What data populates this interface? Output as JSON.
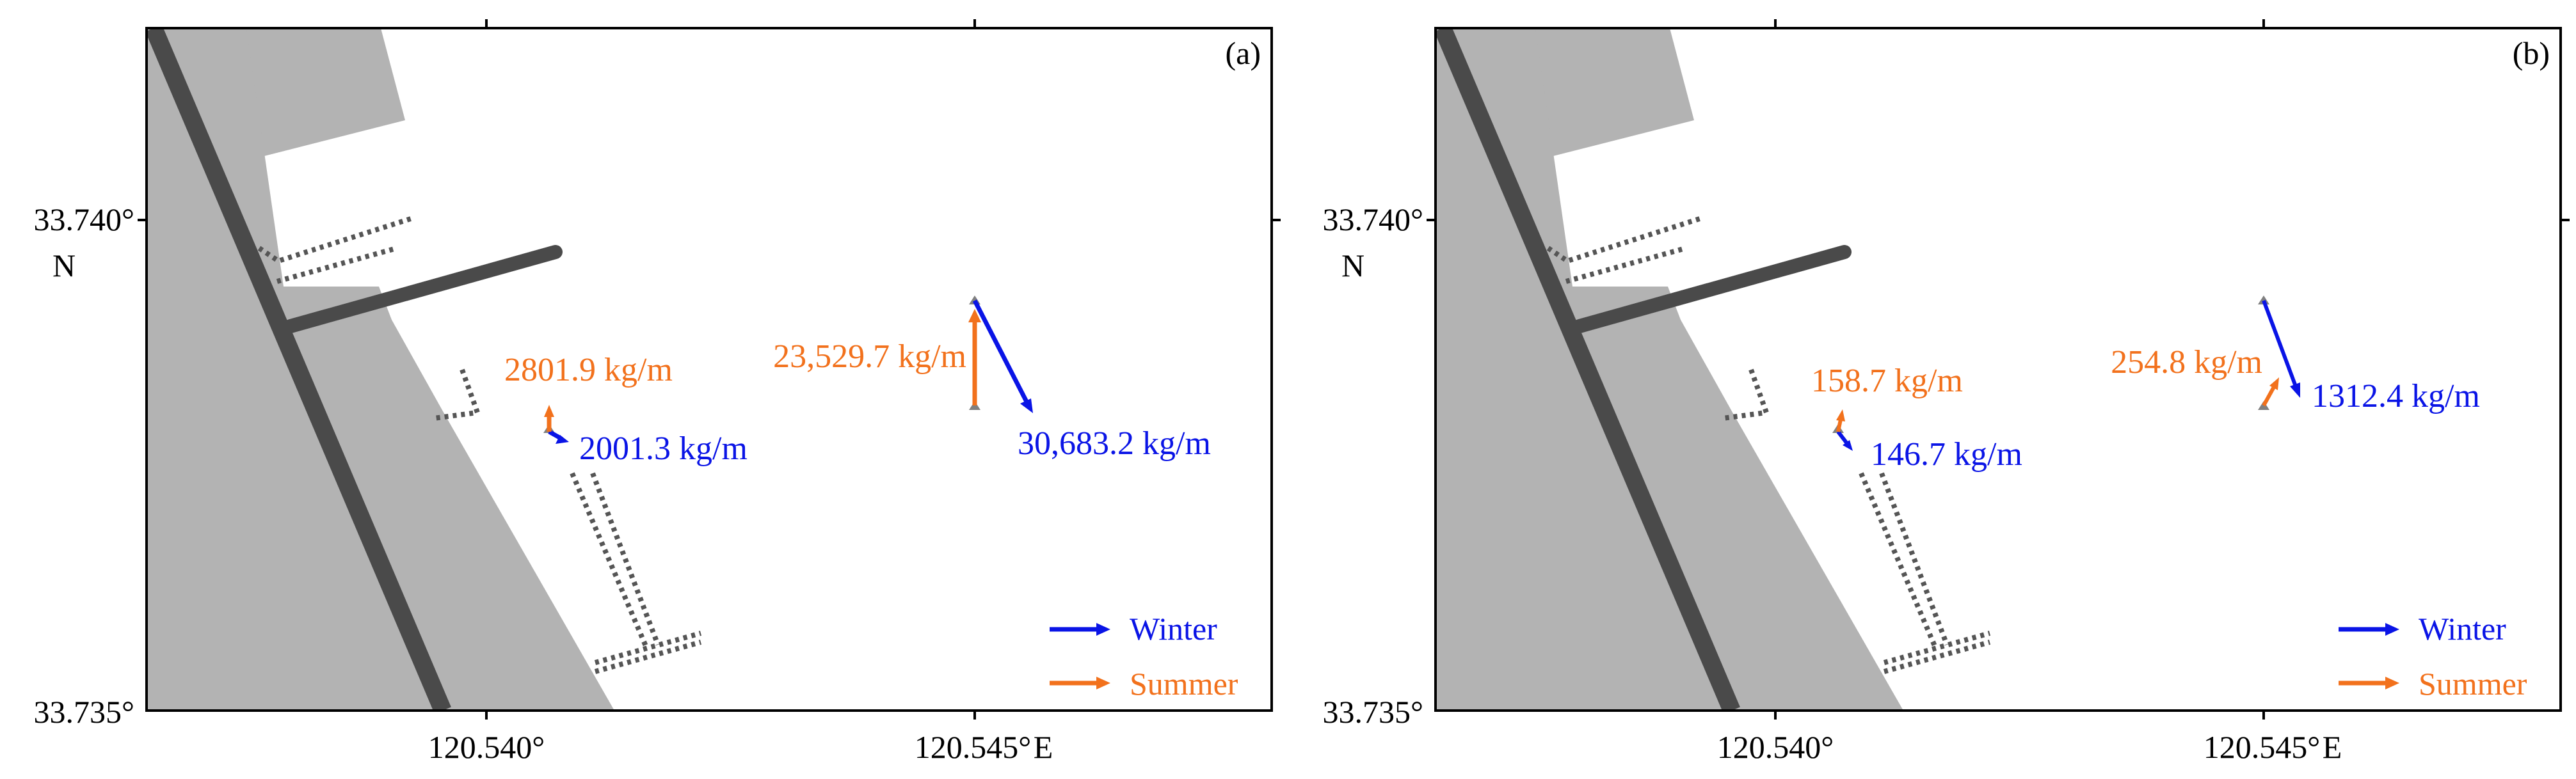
{
  "colors": {
    "winter": "#0a14e6",
    "summer": "#f2711c",
    "land": "#b3b3b3",
    "road": "#4a4a4a",
    "structure": "#555555",
    "station": "#808080"
  },
  "axes": {
    "y_top_label": "33.740°",
    "y_bottom_label": "33.735°",
    "y_unit": "N",
    "x_left_label": "120.540°",
    "x_right_label": "120.545°",
    "x_unit": "E"
  },
  "legend": {
    "winter": "Winter",
    "summer": "Summer"
  },
  "panels": [
    {
      "tag": "(a)",
      "offshore": {
        "summer": {
          "value": 23529.7,
          "label": "23,529.7 kg/m"
        },
        "winter": {
          "value": 30683.2,
          "label": "30,683.2 kg/m"
        }
      },
      "nearshore": {
        "summer": {
          "value": 2801.9,
          "label": "2801.9 kg/m"
        },
        "winter": {
          "value": 2001.3,
          "label": "2001.3 kg/m"
        }
      }
    },
    {
      "tag": "(b)",
      "offshore": {
        "summer": {
          "value": 254.8,
          "label": "254.8 kg/m"
        },
        "winter": {
          "value": 1312.4,
          "label": "1312.4 kg/m"
        }
      },
      "nearshore": {
        "summer": {
          "value": 158.7,
          "label": "158.7 kg/m"
        },
        "winter": {
          "value": 146.7,
          "label": "146.7 kg/m"
        }
      }
    }
  ]
}
